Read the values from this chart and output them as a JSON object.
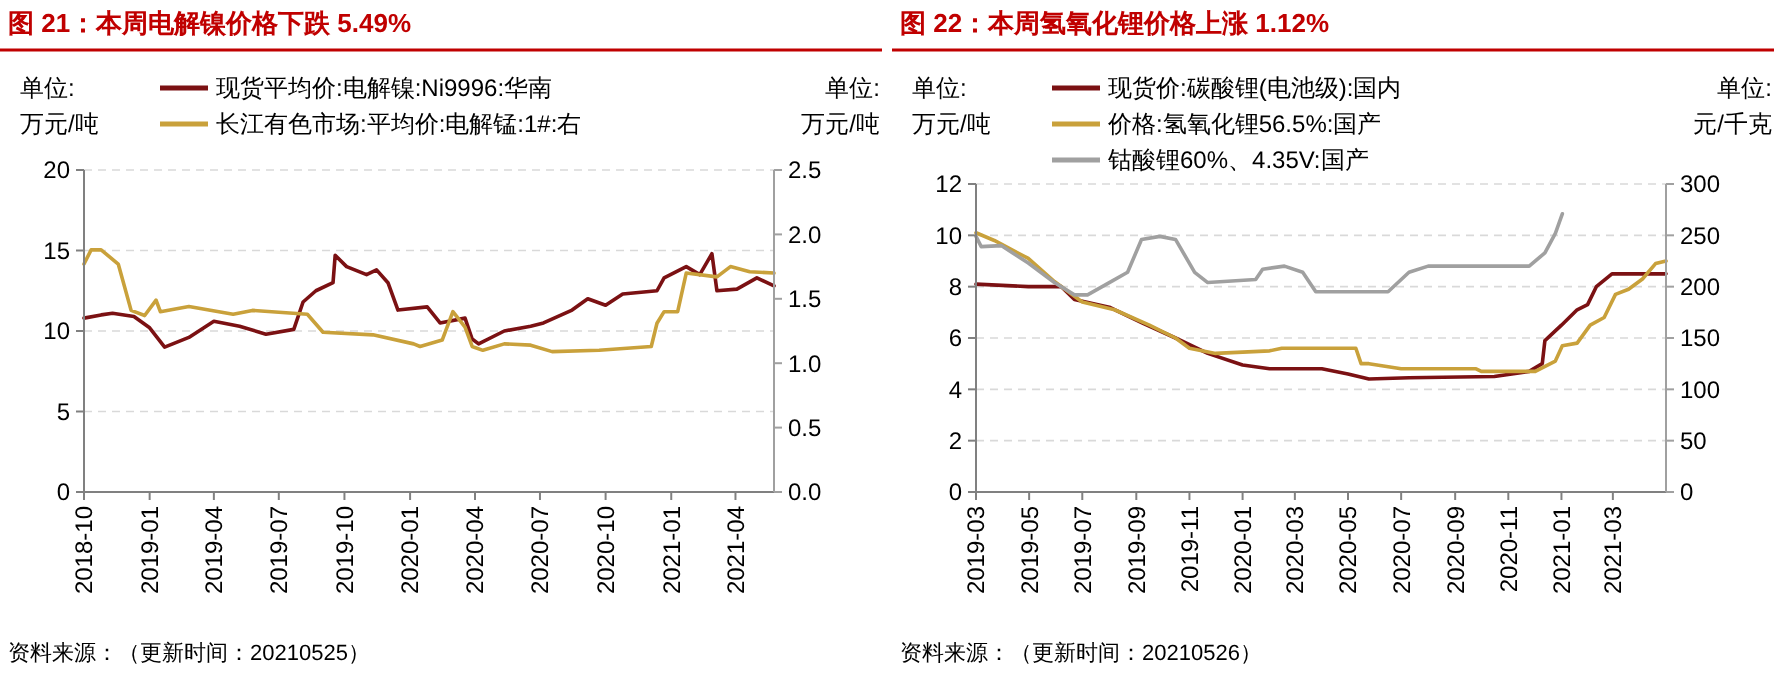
{
  "chart_data": [
    {
      "type": "line",
      "title": "图 21：本周电解镍价格下跌 5.49%",
      "ylabel": "单位:\n万元/吨",
      "y2label": "单位:\n万元/吨",
      "annotations": [
        "资料来源：（更新时间：20210525）"
      ],
      "legend": "top",
      "grid": "y",
      "xlim": [
        "2018-10-01",
        "2021-05-25"
      ],
      "xticks": [
        "2018-10",
        "2019-01",
        "2019-04",
        "2019-07",
        "2019-10",
        "2020-01",
        "2020-04",
        "2020-07",
        "2020-10",
        "2021-01",
        "2021-04"
      ],
      "ylim": [
        0,
        20
      ],
      "yticks": [
        0,
        5,
        10,
        15,
        20
      ],
      "y2lim": [
        0,
        2.5
      ],
      "y2ticks": [
        {
          "value": 0,
          "label": "0.0"
        },
        {
          "value": 0.5,
          "label": "0.5"
        },
        {
          "value": 1,
          "label": "1.0"
        },
        {
          "value": 1.5,
          "label": "1.5"
        },
        {
          "value": 2,
          "label": "2.0"
        },
        {
          "value": 2.5,
          "label": "2.5"
        }
      ],
      "series": [
        {
          "name": "现货平均价:电解镍:Ni9996:华南",
          "color": "#7b1113",
          "x": [
            "2018-10-01",
            "2018-10-25",
            "2018-11-10",
            "2018-12-10",
            "2019-01-01",
            "2019-01-22",
            "2019-02-25",
            "2019-04-01",
            "2019-05-07",
            "2019-06-13",
            "2019-07-22",
            "2019-08-04",
            "2019-08-22",
            "2019-09-15",
            "2019-09-18",
            "2019-10-04",
            "2019-11-01",
            "2019-11-15",
            "2019-12-01",
            "2019-12-15",
            "2020-01-25",
            "2020-02-12",
            "2020-03-18",
            "2020-03-28",
            "2020-04-06",
            "2020-05-12",
            "2020-06-18",
            "2020-07-06",
            "2020-08-15",
            "2020-09-06",
            "2020-10-01",
            "2020-10-25",
            "2020-12-12",
            "2020-12-22",
            "2021-01-22",
            "2021-02-10",
            "2021-02-27",
            "2021-03-06",
            "2021-04-03",
            "2021-05-01",
            "2021-05-25"
          ],
          "values": [
            10.8,
            11.0,
            11.1,
            10.9,
            10.2,
            9.0,
            9.6,
            10.6,
            10.3,
            9.8,
            10.1,
            11.8,
            12.5,
            13.0,
            14.7,
            14.0,
            13.5,
            13.8,
            13.0,
            11.3,
            11.5,
            10.5,
            10.8,
            9.5,
            9.2,
            10.0,
            10.3,
            10.5,
            11.3,
            12.0,
            11.6,
            12.3,
            12.5,
            13.3,
            14.0,
            13.5,
            14.8,
            12.5,
            12.6,
            13.3,
            12.8
          ]
        },
        {
          "name": "长江有色市场:平均价:电解锰:1#:右",
          "color": "#c9a13b",
          "axis": "y2",
          "x": [
            "2018-10-01",
            "2018-10-11",
            "2018-10-25",
            "2018-11-18",
            "2018-12-06",
            "2018-12-25",
            "2019-01-10",
            "2019-01-16",
            "2019-02-25",
            "2019-04-28",
            "2019-05-25",
            "2019-08-10",
            "2019-09-01",
            "2019-11-10",
            "2020-01-06",
            "2020-01-15",
            "2020-02-15",
            "2020-03-01",
            "2020-03-18",
            "2020-03-28",
            "2020-04-12",
            "2020-05-12",
            "2020-06-18",
            "2020-07-18",
            "2020-09-22",
            "2020-12-04",
            "2020-12-12",
            "2020-12-22",
            "2021-01-10",
            "2021-01-22",
            "2021-03-06",
            "2021-03-25",
            "2021-04-21",
            "2021-05-25"
          ],
          "values": [
            1.77,
            1.88,
            1.88,
            1.77,
            1.41,
            1.37,
            1.49,
            1.4,
            1.44,
            1.38,
            1.41,
            1.38,
            1.24,
            1.22,
            1.15,
            1.13,
            1.18,
            1.4,
            1.28,
            1.13,
            1.1,
            1.15,
            1.14,
            1.09,
            1.1,
            1.13,
            1.31,
            1.4,
            1.4,
            1.7,
            1.67,
            1.75,
            1.71,
            1.7
          ]
        }
      ]
    },
    {
      "type": "line",
      "title": "图 22：本周氢氧化锂价格上涨 1.12%",
      "ylabel": "单位:\n万元/吨",
      "y2label": "单位:\n元/千克",
      "annotations": [
        "资料来源：（更新时间：20210526）"
      ],
      "legend": "top",
      "grid": "y",
      "xlim": [
        "2019-03-01",
        "2021-05-01"
      ],
      "xticks": [
        "2019-03",
        "2019-05",
        "2019-07",
        "2019-09",
        "2019-11",
        "2020-01",
        "2020-03",
        "2020-05",
        "2020-07",
        "2020-09",
        "2020-11",
        "2021-01",
        "2021-03"
      ],
      "ylim": [
        0,
        12
      ],
      "yticks": [
        0,
        2,
        4,
        6,
        8,
        10,
        12
      ],
      "y2lim": [
        0,
        300
      ],
      "y2ticks": [
        0,
        50,
        100,
        150,
        200,
        250,
        300
      ],
      "series": [
        {
          "name": "现货价:碳酸锂(电池级):国内",
          "color": "#7b1113",
          "x": [
            "2019-03-01",
            "2019-04-30",
            "2019-06-07",
            "2019-06-22",
            "2019-08-01",
            "2019-09-07",
            "2019-10-16",
            "2019-11-22",
            "2020-01-01",
            "2020-02-01",
            "2020-04-01",
            "2020-05-01",
            "2020-05-25",
            "2020-07-10",
            "2020-10-16",
            "2020-11-25",
            "2020-12-10",
            "2020-12-13",
            "2021-01-01",
            "2021-01-19",
            "2021-01-31",
            "2021-02-10",
            "2021-02-28",
            "2021-05-01"
          ],
          "values": [
            8.1,
            8.0,
            8.0,
            7.5,
            7.2,
            6.6,
            6.0,
            5.4,
            4.95,
            4.8,
            4.8,
            4.6,
            4.4,
            4.45,
            4.5,
            4.7,
            5.0,
            5.9,
            6.5,
            7.1,
            7.3,
            8.0,
            8.5,
            8.5
          ]
        },
        {
          "name": "价格:氢氧化锂56.5%:国产",
          "color": "#c9a13b",
          "x": [
            "2019-03-01",
            "2019-03-22",
            "2019-04-30",
            "2019-05-30",
            "2019-07-01",
            "2019-08-07",
            "2019-09-16",
            "2019-10-16",
            "2019-11-01",
            "2019-12-01",
            "2020-02-01",
            "2020-02-15",
            "2020-04-25",
            "2020-05-10",
            "2020-05-16",
            "2020-05-25",
            "2020-07-01",
            "2020-09-25",
            "2020-10-01",
            "2020-12-02",
            "2020-12-25",
            "2021-01-02",
            "2021-01-19",
            "2021-02-03",
            "2021-02-19",
            "2021-03-04",
            "2021-03-19",
            "2021-04-04",
            "2021-04-19",
            "2021-05-01"
          ],
          "values": [
            10.1,
            9.8,
            9.1,
            8.2,
            7.4,
            7.1,
            6.5,
            6.0,
            5.6,
            5.4,
            5.5,
            5.6,
            5.6,
            5.6,
            5.0,
            5.0,
            4.8,
            4.8,
            4.7,
            4.7,
            5.1,
            5.7,
            5.8,
            6.5,
            6.8,
            7.7,
            7.9,
            8.3,
            8.9,
            9.0
          ]
        },
        {
          "name": "钴酸锂60%、4.35V:国产",
          "color": "#a0a0a0",
          "axis": "y2",
          "x": [
            "2019-03-01",
            "2019-03-07",
            "2019-03-30",
            "2019-04-30",
            "2019-05-30",
            "2019-06-22",
            "2019-07-07",
            "2019-08-01",
            "2019-08-22",
            "2019-09-07",
            "2019-09-28",
            "2019-10-16",
            "2019-11-07",
            "2019-11-22",
            "2020-01-16",
            "2020-01-24",
            "2020-02-18",
            "2020-03-10",
            "2020-03-25",
            "2020-06-16",
            "2020-07-10",
            "2020-08-01",
            "2020-11-25",
            "2020-12-13",
            "2020-12-25",
            "2021-01-02"
          ],
          "values": [
            249,
            239,
            240,
            223,
            204,
            192,
            192,
            204,
            214,
            246,
            249,
            246,
            214,
            204,
            207,
            217,
            220,
            214,
            195,
            195,
            214,
            220,
            220,
            233,
            252,
            271
          ]
        }
      ]
    }
  ]
}
